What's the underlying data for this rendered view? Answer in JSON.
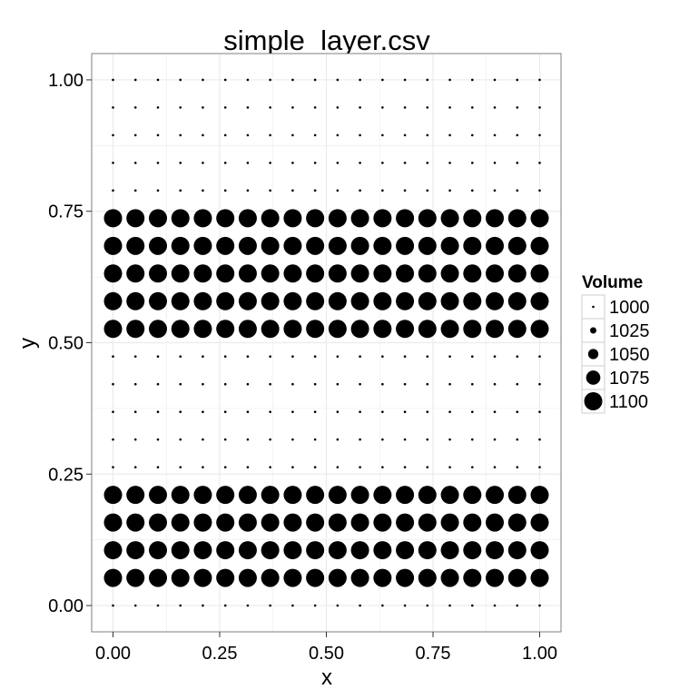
{
  "chart_data": {
    "type": "scatter",
    "title": "simple_layer.csv",
    "xlabel": "x",
    "ylabel": "y",
    "xlim": [
      -0.05,
      1.05
    ],
    "ylim": [
      -0.05,
      1.05
    ],
    "x_ticks": [
      {
        "value": 0,
        "label": "0.00"
      },
      {
        "value": 0.25,
        "label": "0.25"
      },
      {
        "value": 0.5,
        "label": "0.50"
      },
      {
        "value": 0.75,
        "label": "0.75"
      },
      {
        "value": 1,
        "label": "1.00"
      }
    ],
    "y_ticks": [
      {
        "value": 0,
        "label": "0.00"
      },
      {
        "value": 0.25,
        "label": "0.25"
      },
      {
        "value": 0.5,
        "label": "0.50"
      },
      {
        "value": 0.75,
        "label": "0.75"
      },
      {
        "value": 1,
        "label": "1.00"
      }
    ],
    "x": [
      0,
      0.0526,
      0.1053,
      0.1579,
      0.2105,
      0.2632,
      0.3158,
      0.3684,
      0.4211,
      0.4737,
      0.5263,
      0.5789,
      0.6316,
      0.6842,
      0.7368,
      0.7895,
      0.8421,
      0.8947,
      0.9474,
      1.0
    ],
    "y_rows": [
      {
        "y": 0.0,
        "volume": 1000
      },
      {
        "y": 0.0526,
        "volume": 1100
      },
      {
        "y": 0.1053,
        "volume": 1100
      },
      {
        "y": 0.1579,
        "volume": 1100
      },
      {
        "y": 0.2105,
        "volume": 1100
      },
      {
        "y": 0.2632,
        "volume": 1000
      },
      {
        "y": 0.3158,
        "volume": 1000
      },
      {
        "y": 0.3684,
        "volume": 1000
      },
      {
        "y": 0.4211,
        "volume": 1000
      },
      {
        "y": 0.4737,
        "volume": 1000
      },
      {
        "y": 0.5263,
        "volume": 1100
      },
      {
        "y": 0.5789,
        "volume": 1100
      },
      {
        "y": 0.6316,
        "volume": 1100
      },
      {
        "y": 0.6842,
        "volume": 1100
      },
      {
        "y": 0.7368,
        "volume": 1100
      },
      {
        "y": 0.7895,
        "volume": 1000
      },
      {
        "y": 0.8421,
        "volume": 1000
      },
      {
        "y": 0.8947,
        "volume": 1000
      },
      {
        "y": 0.9474,
        "volume": 1000
      },
      {
        "y": 1.0,
        "volume": 1000
      }
    ],
    "size_legend": {
      "title": "Volume",
      "placement": "right",
      "entries": [
        {
          "label": "1000",
          "value": 1000
        },
        {
          "label": "1025",
          "value": 1025
        },
        {
          "label": "1050",
          "value": 1050
        },
        {
          "label": "1075",
          "value": 1075
        },
        {
          "label": "1100",
          "value": 1100
        }
      ]
    },
    "grid": true,
    "point_color": "#000000",
    "grid_color": "#ebebeb",
    "panel_border_color": "#7f7f7f"
  }
}
